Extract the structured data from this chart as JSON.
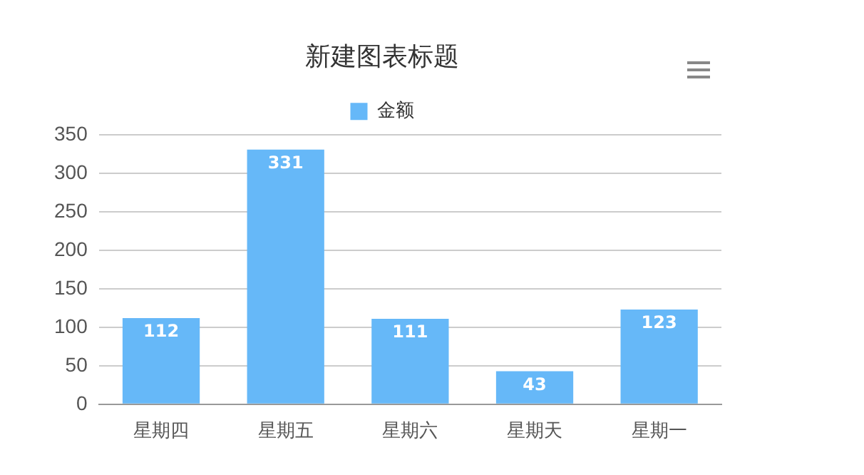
{
  "chart_data": {
    "type": "bar",
    "title": "新建图表标题",
    "categories": [
      "星期四",
      "星期五",
      "星期六",
      "星期天",
      "星期一"
    ],
    "series": [
      {
        "name": "金额",
        "color": "#66b8f8",
        "values": [
          112,
          331,
          111,
          43,
          123
        ]
      }
    ],
    "ylim": [
      0,
      350
    ],
    "yticks": [
      0,
      50,
      100,
      150,
      200,
      250,
      300,
      350
    ],
    "grid": "y",
    "legend": "top",
    "data_labels": true
  }
}
